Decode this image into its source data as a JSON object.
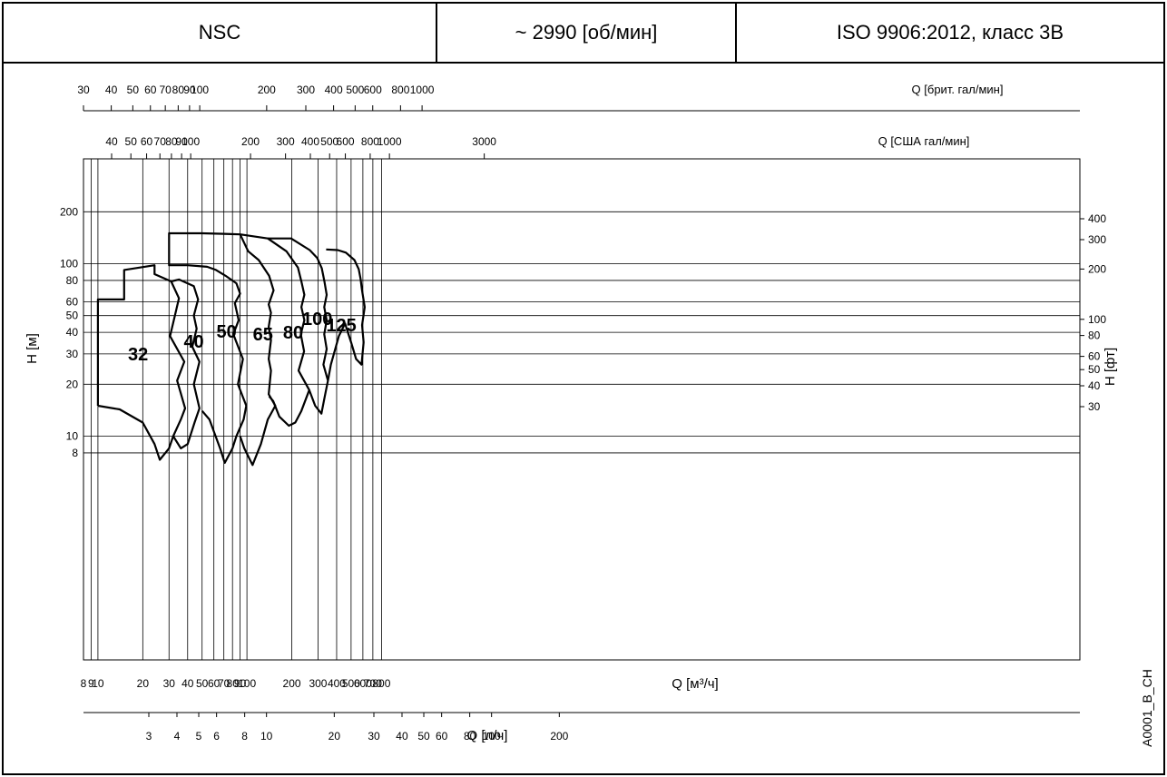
{
  "header": {
    "model": "NSC",
    "speed": "~ 2990 [об/мин]",
    "standard": "ISO 9906:2012, класс 3В"
  },
  "drawing_code": "A0001_B_CH",
  "chart_data": {
    "type": "line",
    "title": "",
    "xscale": "log",
    "yscale": "log",
    "xlim": [
      8,
      800
    ],
    "ylim": [
      7,
      200
    ],
    "xlabel": "Q [м³/ч]",
    "ylabel": "H [м]",
    "grid": true,
    "x_ticks": [
      "8",
      "9",
      "10",
      "20",
      "30",
      "40",
      "50",
      "60",
      "70",
      "80",
      "90",
      "100",
      "200",
      "300",
      "400",
      "500",
      "600",
      "700",
      "800"
    ],
    "y_ticks": [
      "8",
      "10",
      "20",
      "30",
      "40",
      "50",
      "60",
      "80",
      "100",
      "200"
    ],
    "secondary_axes": {
      "h_ft": {
        "label": "H [фт]",
        "ticks": [
          {
            "label": "30",
            "value": 30
          },
          {
            "label": "40",
            "value": 40
          },
          {
            "label": "50",
            "value": 50
          },
          {
            "label": "60",
            "value": 60
          },
          {
            "label": "80",
            "value": 80
          },
          {
            "label": "100",
            "value": 100
          },
          {
            "label": "200",
            "value": 200
          },
          {
            "label": "300",
            "value": 300
          },
          {
            "label": "400",
            "value": 400
          }
        ]
      },
      "q_ls": {
        "label": "Q [л/ч]",
        "ticks": [
          {
            "label": "3",
            "value": 3
          },
          {
            "label": "4",
            "value": 4
          },
          {
            "label": "5",
            "value": 5
          },
          {
            "label": "6",
            "value": 6
          },
          {
            "label": "8",
            "value": 8
          },
          {
            "label": "10",
            "value": 10
          },
          {
            "label": "20",
            "value": 20
          },
          {
            "label": "30",
            "value": 30
          },
          {
            "label": "40",
            "value": 40
          },
          {
            "label": "50",
            "value": 50
          },
          {
            "label": "60",
            "value": 60
          },
          {
            "label": "80",
            "value": 80
          },
          {
            "label": "100",
            "value": 100
          },
          {
            "label": "200",
            "value": 200
          }
        ]
      },
      "q_usgpm": {
        "label": "Q [США гал/мин]",
        "ticks": [
          {
            "label": "40",
            "value": 40
          },
          {
            "label": "50",
            "value": 50
          },
          {
            "label": "60",
            "value": 60
          },
          {
            "label": "70",
            "value": 70
          },
          {
            "label": "80",
            "value": 80
          },
          {
            "label": "90",
            "value": 90
          },
          {
            "label": "100",
            "value": 100
          },
          {
            "label": "200",
            "value": 200
          },
          {
            "label": "300",
            "value": 300
          },
          {
            "label": "400",
            "value": 400
          },
          {
            "label": "500",
            "value": 500
          },
          {
            "label": "600",
            "value": 600
          },
          {
            "label": "800",
            "value": 800
          },
          {
            "label": "1000",
            "value": 1000
          },
          {
            "label": "3000",
            "value": 3000
          }
        ]
      },
      "q_ukgpm": {
        "label": "Q [брит. гал/мин]",
        "ticks": [
          {
            "label": "30",
            "value": 30
          },
          {
            "label": "40",
            "value": 40
          },
          {
            "label": "50",
            "value": 50
          },
          {
            "label": "60",
            "value": 60
          },
          {
            "label": "70",
            "value": 70
          },
          {
            "label": "80",
            "value": 80
          },
          {
            "label": "90",
            "value": 90
          },
          {
            "label": "100",
            "value": 100
          },
          {
            "label": "200",
            "value": 200
          },
          {
            "label": "300",
            "value": 300
          },
          {
            "label": "400",
            "value": 400
          },
          {
            "label": "500",
            "value": 500
          },
          {
            "label": "600",
            "value": 600
          },
          {
            "label": "800",
            "value": 800
          },
          {
            "label": "1000",
            "value": 1000
          }
        ]
      }
    },
    "series": [
      {
        "name": "32",
        "label_at": [
          18.6,
          30
        ],
        "points": [
          [
            10,
            15
          ],
          [
            14,
            14.3
          ],
          [
            20,
            12
          ],
          [
            24,
            9
          ],
          [
            26,
            7.3
          ],
          [
            30,
            8.5
          ],
          [
            32,
            10
          ],
          [
            36,
            12.5
          ],
          [
            38.5,
            14.5
          ],
          [
            34,
            21
          ],
          [
            38,
            27
          ],
          [
            30.5,
            38
          ],
          [
            33,
            51
          ],
          [
            35,
            63
          ],
          [
            31,
            79
          ],
          [
            24,
            87
          ],
          [
            24,
            98
          ],
          [
            15,
            92
          ],
          [
            15,
            62
          ],
          [
            10,
            62
          ],
          [
            10,
            15
          ]
        ]
      },
      {
        "name": "40",
        "label_at": [
          44,
          35.5
        ],
        "points": [
          [
            32,
            10
          ],
          [
            36,
            8.5
          ],
          [
            40,
            9
          ],
          [
            44.5,
            12
          ],
          [
            48,
            14.5
          ],
          [
            44,
            20
          ],
          [
            48,
            27
          ],
          [
            43,
            33
          ],
          [
            46,
            42
          ],
          [
            44,
            50
          ],
          [
            47,
            62
          ],
          [
            44,
            74
          ],
          [
            35,
            81
          ],
          [
            31,
            79
          ]
        ]
      },
      {
        "name": "50",
        "label_at": [
          73,
          40.5
        ],
        "points": [
          [
            50,
            14
          ],
          [
            56,
            12.5
          ],
          [
            66,
            8.5
          ],
          [
            71,
            7
          ],
          [
            80,
            8.5
          ],
          [
            85,
            10
          ],
          [
            95,
            12.5
          ],
          [
            99,
            15
          ],
          [
            87,
            20
          ],
          [
            94,
            28
          ],
          [
            81,
            39
          ],
          [
            88,
            47
          ],
          [
            83,
            59
          ],
          [
            90,
            67
          ],
          [
            85,
            77
          ],
          [
            72,
            85
          ],
          [
            62,
            92
          ],
          [
            54,
            96
          ],
          [
            40,
            98
          ],
          [
            30,
            98
          ],
          [
            30,
            150
          ],
          [
            50,
            150
          ],
          [
            70,
            149
          ],
          [
            90,
            148
          ]
        ]
      },
      {
        "name": "65",
        "label_at": [
          128,
          39
        ],
        "points": [
          [
            90,
            10
          ],
          [
            96,
            8.5
          ],
          [
            109,
            6.8
          ],
          [
            124,
            9
          ],
          [
            138,
            12.5
          ],
          [
            155,
            15
          ],
          [
            140,
            17.5
          ],
          [
            145,
            24
          ],
          [
            140,
            28
          ],
          [
            145,
            36
          ],
          [
            140,
            43
          ],
          [
            145,
            52
          ],
          [
            140,
            58
          ],
          [
            151,
            70
          ],
          [
            141,
            85
          ],
          [
            120,
            105
          ],
          [
            102,
            118
          ],
          [
            90,
            148
          ]
        ]
      },
      {
        "name": "80",
        "label_at": [
          204,
          40
        ],
        "points": [
          [
            141,
            17
          ],
          [
            150,
            16
          ],
          [
            165,
            13
          ],
          [
            191,
            11.5
          ],
          [
            211,
            12
          ],
          [
            232,
            14
          ],
          [
            262,
            18.5
          ],
          [
            222,
            24
          ],
          [
            242,
            31
          ],
          [
            230,
            39
          ],
          [
            243,
            47
          ],
          [
            232,
            56
          ],
          [
            243,
            66
          ],
          [
            232,
            79
          ],
          [
            220,
            95
          ],
          [
            184,
            118
          ],
          [
            138,
            140
          ],
          [
            90,
            148
          ]
        ]
      },
      {
        "name": "100",
        "label_at": [
          297,
          48
        ],
        "points": [
          [
            262,
            18.5
          ],
          [
            287,
            15
          ],
          [
            316,
            13.5
          ],
          [
            333,
            17
          ],
          [
            350,
            21
          ],
          [
            326,
            26
          ],
          [
            343,
            32
          ],
          [
            330,
            39
          ],
          [
            343,
            47
          ],
          [
            330,
            56
          ],
          [
            343,
            66
          ],
          [
            331,
            79
          ],
          [
            318,
            94
          ],
          [
            296,
            108
          ],
          [
            264,
            120
          ],
          [
            198,
            140
          ],
          [
            138,
            140
          ]
        ]
      },
      {
        "name": "125",
        "label_at": [
          430,
          44
        ],
        "points": [
          [
            350,
            21
          ],
          [
            366,
            26
          ],
          [
            414,
            38
          ],
          [
            455,
            45
          ],
          [
            500,
            35
          ],
          [
            540,
            28
          ],
          [
            588,
            26
          ],
          [
            607,
            35
          ],
          [
            593,
            44
          ],
          [
            617,
            56
          ],
          [
            591,
            71
          ],
          [
            579,
            82
          ],
          [
            563,
            93
          ],
          [
            527,
            105
          ],
          [
            462,
            116
          ],
          [
            407,
            120
          ],
          [
            340,
            121
          ]
        ]
      }
    ]
  }
}
